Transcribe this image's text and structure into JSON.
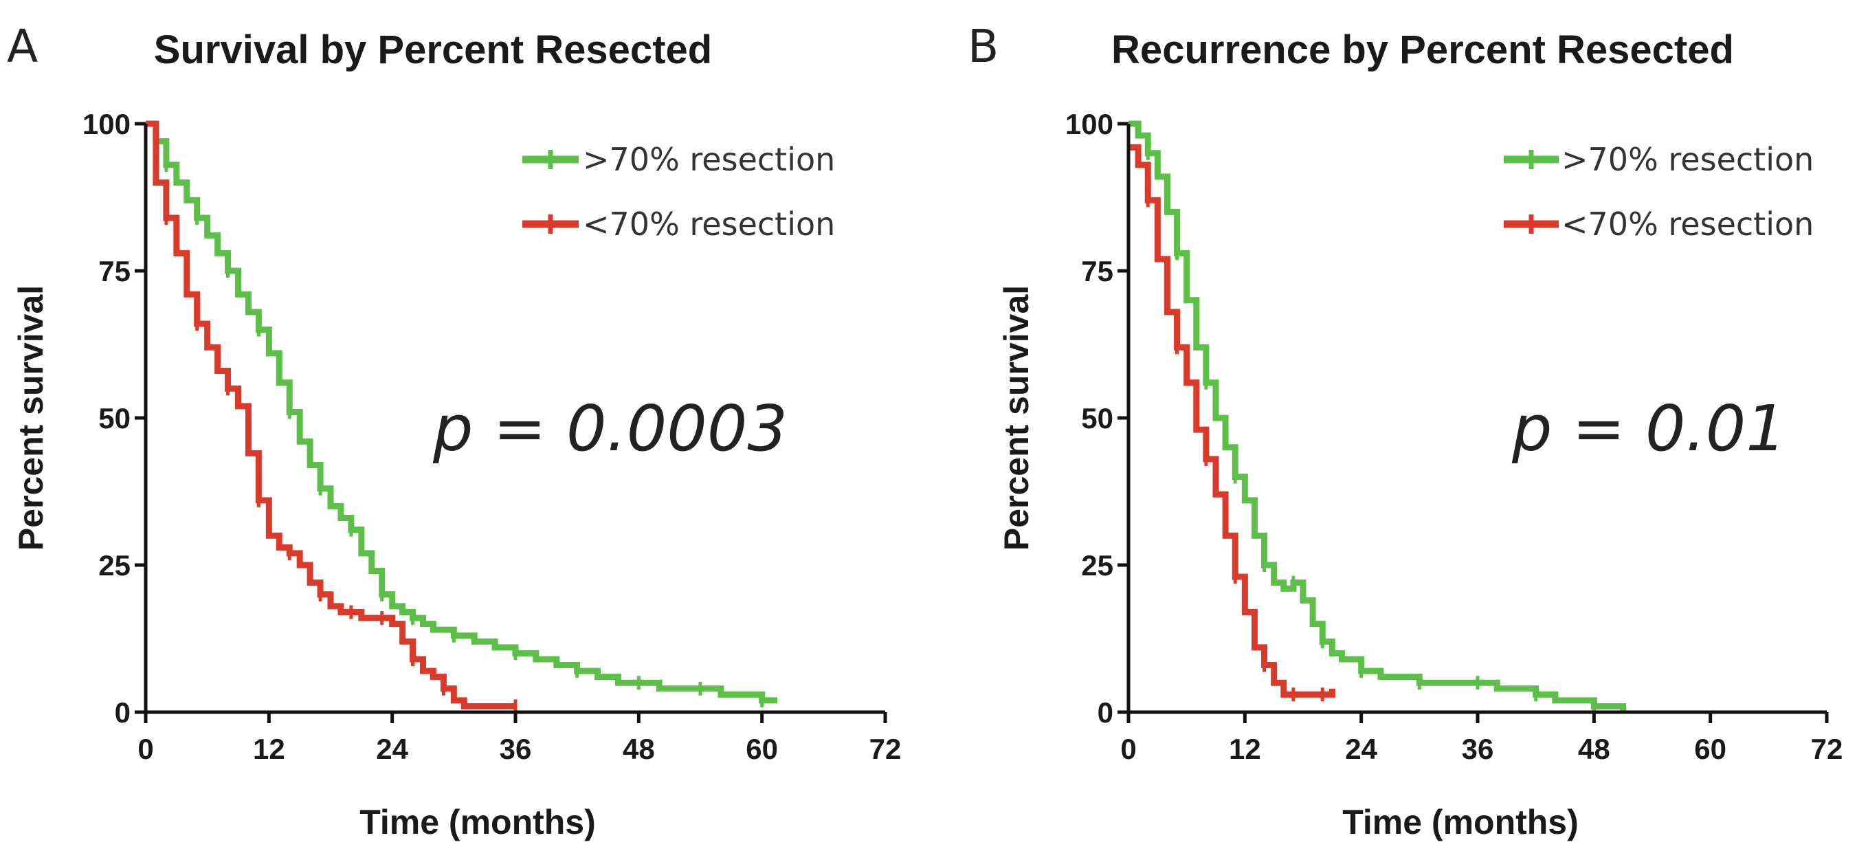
{
  "chart_data": [
    {
      "type": "line",
      "panel": "A",
      "title": "Survival by Percent Resected",
      "xlabel": "Time (months)",
      "ylabel": "Percent survival",
      "xlim": [
        0,
        72
      ],
      "ylim": [
        0,
        100
      ],
      "xticks": [
        "0",
        "12",
        "24",
        "36",
        "48",
        "60",
        "72"
      ],
      "yticks": [
        "0",
        "25",
        "50",
        "75",
        "100"
      ],
      "annotation": "p = 0.0003",
      "legend_position": "top-right",
      "series": [
        {
          "name": ">70% resection",
          "color": "#5cbf48",
          "x": [
            0,
            1,
            2,
            3,
            4,
            5,
            6,
            7,
            8,
            9,
            10,
            11,
            12,
            13,
            14,
            15,
            16,
            17,
            18,
            19,
            20,
            21,
            22,
            23,
            24,
            25,
            26,
            27,
            28,
            30,
            32,
            34,
            36,
            38,
            40,
            42,
            44,
            46,
            48,
            50,
            52,
            54,
            56,
            58,
            60,
            61.5
          ],
          "y": [
            100,
            97,
            93,
            90,
            87,
            84,
            81,
            78,
            75,
            71,
            68,
            65,
            61,
            56,
            51,
            46,
            42,
            38,
            35,
            33,
            31,
            27,
            24,
            20,
            18,
            17,
            16,
            15,
            14,
            13,
            12,
            11,
            10,
            9,
            8,
            7,
            6,
            5,
            5,
            4,
            4,
            4,
            3,
            3,
            2,
            2
          ]
        },
        {
          "name": "<70% resection",
          "color": "#d93a2a",
          "x": [
            0,
            1,
            2,
            3,
            4,
            5,
            6,
            7,
            8,
            9,
            10,
            11,
            12,
            13,
            14,
            15,
            16,
            17,
            18,
            19,
            20,
            21,
            22,
            23,
            24,
            25,
            26,
            27,
            28,
            29,
            30,
            31,
            36
          ],
          "y": [
            100,
            90,
            84,
            78,
            71,
            66,
            62,
            58,
            55,
            52,
            44,
            36,
            30,
            28,
            27,
            25,
            22,
            20,
            18,
            17,
            17,
            16,
            16,
            16,
            15,
            12,
            9,
            7,
            6,
            4,
            2,
            1,
            1
          ]
        }
      ]
    },
    {
      "type": "line",
      "panel": "B",
      "title": "Recurrence by Percent  Resected",
      "xlabel": "Time (months)",
      "ylabel": "Percent survival",
      "xlim": [
        0,
        72
      ],
      "ylim": [
        0,
        100
      ],
      "xticks": [
        "0",
        "12",
        "24",
        "36",
        "48",
        "60",
        "72"
      ],
      "yticks": [
        "0",
        "25",
        "50",
        "75",
        "100"
      ],
      "annotation": "p = 0.01",
      "legend_position": "top-right",
      "series": [
        {
          "name": ">70% resection",
          "color": "#5cbf48",
          "x": [
            0,
            1,
            2,
            3,
            4,
            5,
            6,
            7,
            8,
            9,
            10,
            11,
            12,
            13,
            14,
            15,
            16,
            17,
            18,
            19,
            20,
            21,
            22,
            24,
            26,
            28,
            30,
            32,
            34,
            36,
            38,
            40,
            42,
            44,
            46,
            48,
            50,
            51
          ],
          "y": [
            100,
            98,
            95,
            91,
            85,
            78,
            70,
            62,
            56,
            50,
            45,
            40,
            36,
            30,
            25,
            22,
            21,
            22,
            19,
            15,
            12,
            10,
            9,
            7,
            6,
            6,
            5,
            5,
            5,
            5,
            4,
            4,
            3,
            2,
            2,
            1,
            1,
            0
          ]
        },
        {
          "name": "<70% resection",
          "color": "#d93a2a",
          "x": [
            0,
            1,
            2,
            3,
            4,
            5,
            6,
            7,
            8,
            9,
            10,
            11,
            12,
            13,
            14,
            15,
            16,
            17,
            18,
            19,
            20,
            21
          ],
          "y": [
            96,
            93,
            87,
            77,
            68,
            62,
            56,
            48,
            43,
            37,
            30,
            23,
            17,
            11,
            8,
            5,
            3,
            3,
            3,
            3,
            3,
            4
          ]
        }
      ]
    }
  ]
}
